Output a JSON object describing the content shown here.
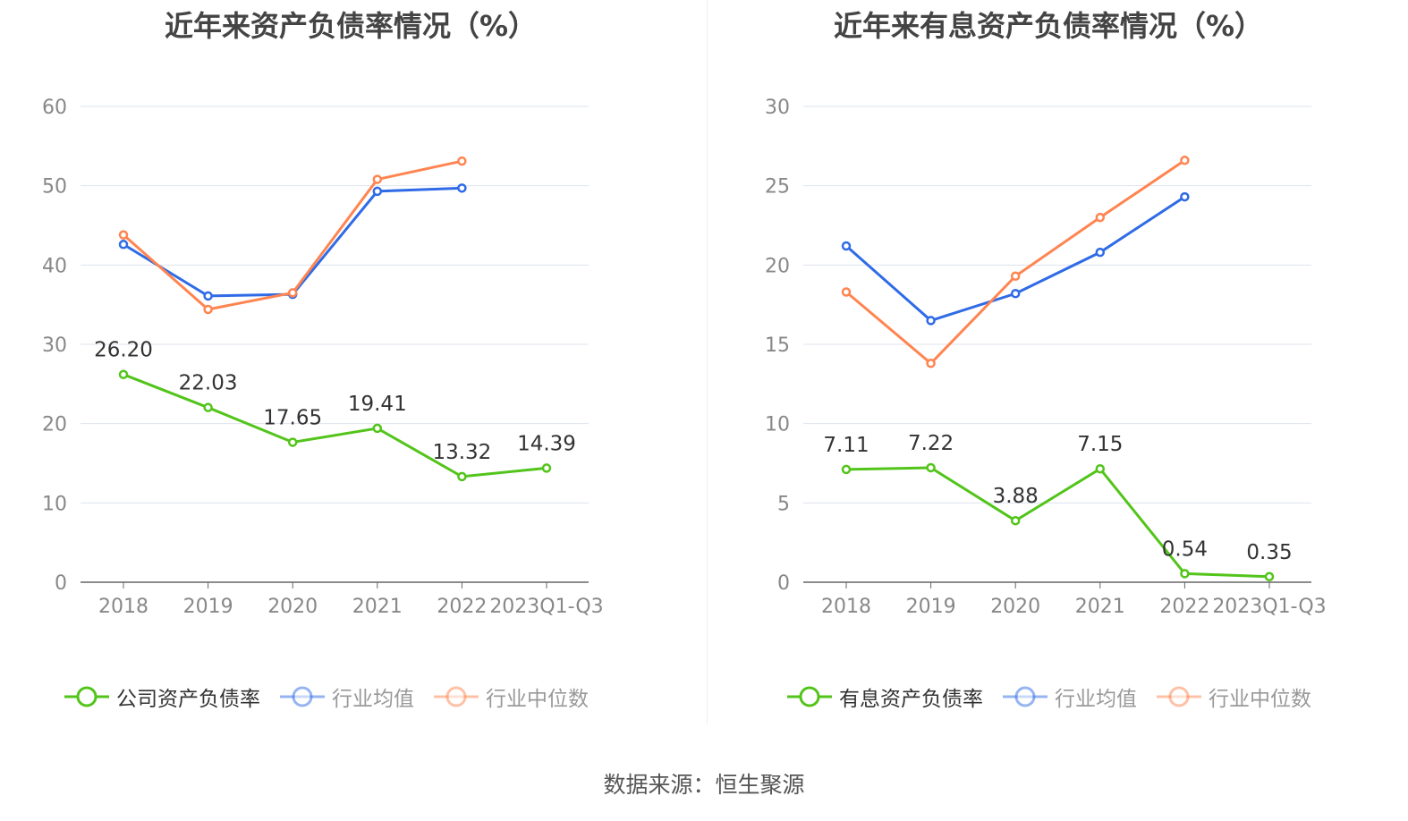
{
  "source": "数据来源：恒生聚源",
  "chart_data": [
    {
      "type": "line",
      "title": "近年来资产负债率情况（%）",
      "categories": [
        "2018",
        "2019",
        "2020",
        "2021",
        "2022",
        "2023Q1-Q3"
      ],
      "ylim": [
        0,
        60
      ],
      "yticks": [
        0,
        10,
        20,
        30,
        40,
        50,
        60
      ],
      "grid": true,
      "legend": "bottom",
      "series": [
        {
          "name": "公司资产负债率",
          "color": "#52c41a",
          "values": [
            26.2,
            22.03,
            17.65,
            19.41,
            13.32,
            14.39
          ],
          "labels": [
            "26.20",
            "22.03",
            "17.65",
            "19.41",
            "13.32",
            "14.39"
          ]
        },
        {
          "name": "行业均值",
          "color": "#2f6be6",
          "values": [
            42.6,
            36.1,
            36.3,
            49.3,
            49.7,
            null
          ]
        },
        {
          "name": "行业中位数",
          "color": "#ff8450",
          "values": [
            43.8,
            34.4,
            36.5,
            50.8,
            53.1,
            null
          ]
        }
      ]
    },
    {
      "type": "line",
      "title": "近年来有息资产负债率情况（%）",
      "categories": [
        "2018",
        "2019",
        "2020",
        "2021",
        "2022",
        "2023Q1-Q3"
      ],
      "ylim": [
        0,
        30
      ],
      "yticks": [
        0,
        5,
        10,
        15,
        20,
        25,
        30
      ],
      "grid": true,
      "legend": "bottom",
      "series": [
        {
          "name": "有息资产负债率",
          "color": "#52c41a",
          "values": [
            7.11,
            7.22,
            3.88,
            7.15,
            0.54,
            0.35
          ],
          "labels": [
            "7.11",
            "7.22",
            "3.88",
            "7.15",
            "0.54",
            "0.35"
          ]
        },
        {
          "name": "行业均值",
          "color": "#2f6be6",
          "values": [
            21.2,
            16.5,
            18.2,
            20.8,
            24.3,
            null
          ]
        },
        {
          "name": "行业中位数",
          "color": "#ff8450",
          "values": [
            18.3,
            13.8,
            19.3,
            23.0,
            26.6,
            null
          ]
        }
      ]
    }
  ]
}
